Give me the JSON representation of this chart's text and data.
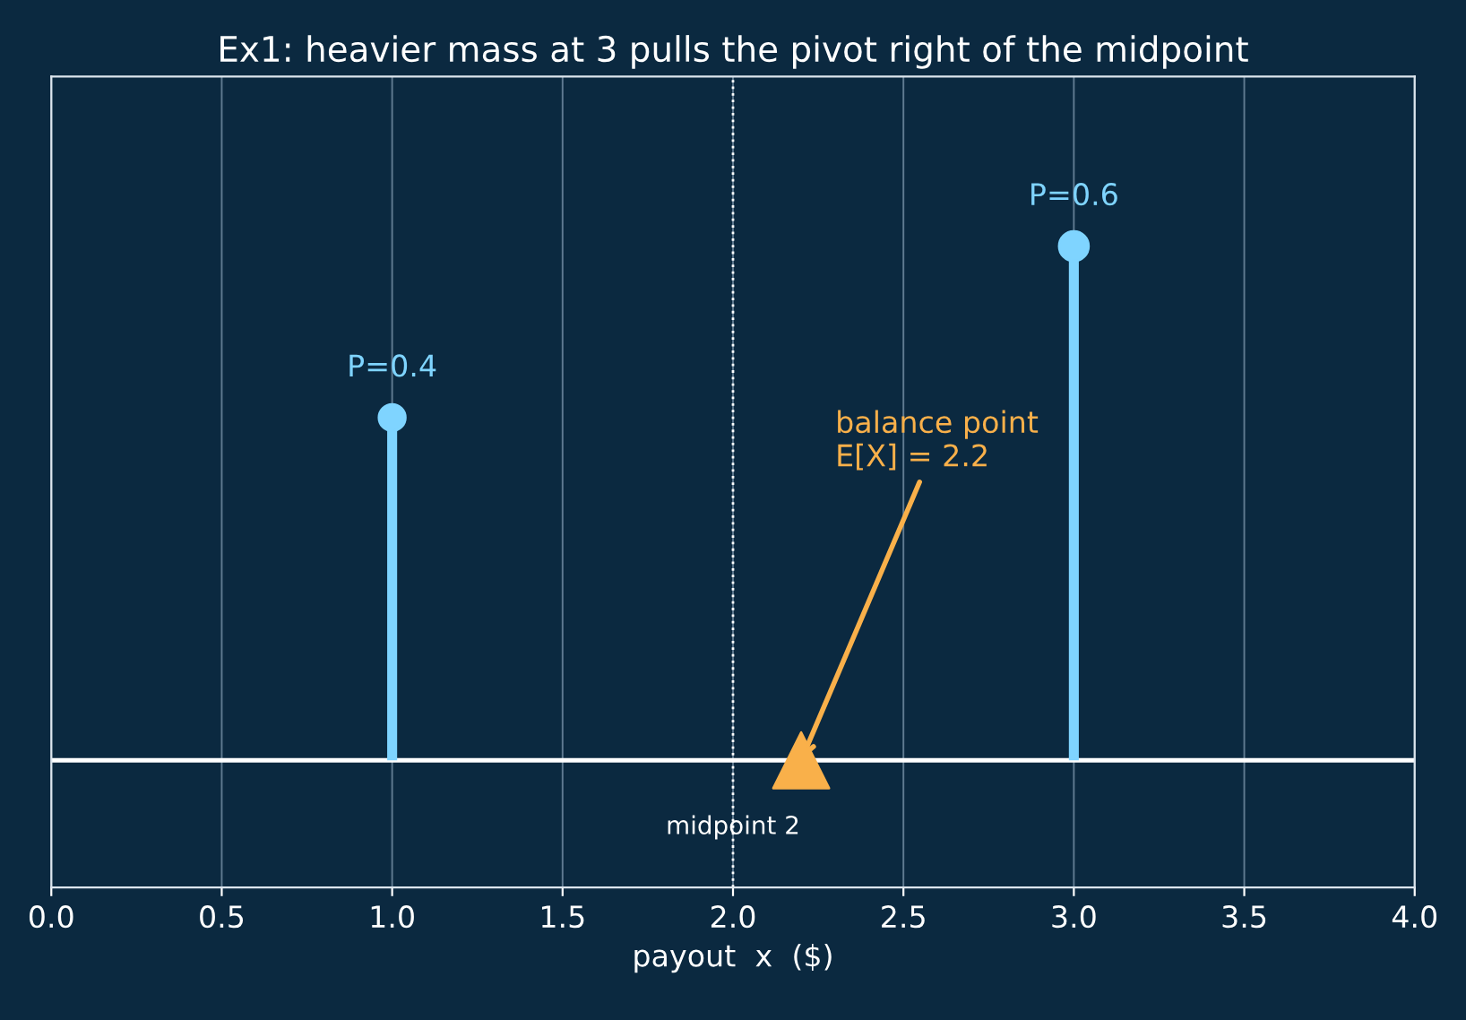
{
  "chart_data": {
    "type": "lollipop",
    "title": "Ex1: heavier mass at 3 pulls the pivot right of the midpoint",
    "xlabel": "payout  x  ($)",
    "tick_labels": "x",
    "xlim": [
      0.0,
      4.0
    ],
    "xticks": [
      {
        "value": 0,
        "label": "0.0"
      },
      {
        "value": 0.5,
        "label": "0.5"
      },
      {
        "value": 1,
        "label": "1.0"
      },
      {
        "value": 1.5,
        "label": "1.5"
      },
      {
        "value": 2,
        "label": "2.0"
      },
      {
        "value": 2.5,
        "label": "2.5"
      },
      {
        "value": 3,
        "label": "3.0"
      },
      {
        "value": 3.5,
        "label": "3.5"
      },
      {
        "value": 4,
        "label": "4.0"
      }
    ],
    "grid": "x",
    "legend": false,
    "series": [
      {
        "x": [
          1,
          3
        ],
        "values": [
          0.4,
          0.6
        ],
        "color": "#7fd4ff",
        "value_labels": [
          "P=0.4",
          "P=0.6"
        ],
        "marker": "circle"
      },
      {
        "type": "scatter",
        "x": [
          2.2
        ],
        "values": [
          0
        ],
        "color": "#f9b04a",
        "marker": "triangle"
      }
    ],
    "ref_lines": [
      {
        "axis": "x",
        "value": 2,
        "label": "midpoint 2",
        "color": "#ffffff",
        "line_style": "dotted"
      }
    ],
    "annotations": [
      {
        "text": "balance point\nE[X] = 2.2",
        "x": 2.2,
        "y": 0
      }
    ]
  }
}
